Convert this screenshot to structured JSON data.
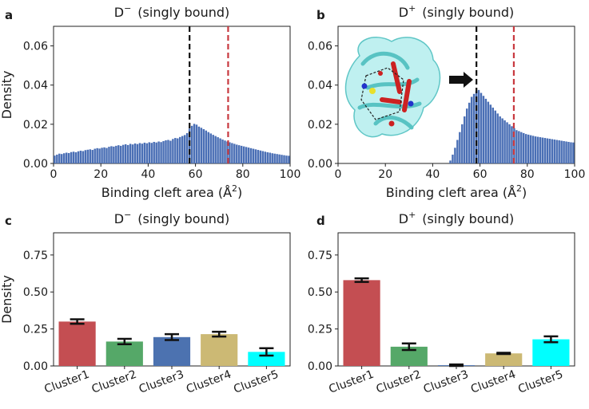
{
  "chart_data": [
    {
      "panel": "a",
      "type": "bar",
      "title_base": "D",
      "title_sup": "−",
      "title_rest": "(singly bound)",
      "xlabel": "Binding cleft area (Å",
      "xlabel_sup": "2",
      "xlabel_end": ")",
      "ylabel": "Density",
      "xlim": [
        0,
        100
      ],
      "ylim": [
        0,
        0.07
      ],
      "xticks": [
        0,
        20,
        40,
        60,
        80,
        100
      ],
      "yticks": [
        "0.00",
        "0.02",
        "0.04",
        "0.06"
      ],
      "bin_start": 0,
      "bin_width": 1,
      "values": [
        0.004,
        0.0045,
        0.005,
        0.0048,
        0.0052,
        0.0055,
        0.0053,
        0.0058,
        0.006,
        0.0057,
        0.0062,
        0.0065,
        0.0063,
        0.0068,
        0.007,
        0.0072,
        0.0069,
        0.0075,
        0.0078,
        0.0076,
        0.008,
        0.0082,
        0.0079,
        0.0085,
        0.0088,
        0.0086,
        0.009,
        0.0093,
        0.009,
        0.0095,
        0.0098,
        0.0094,
        0.01,
        0.0097,
        0.0102,
        0.0099,
        0.0104,
        0.0101,
        0.0106,
        0.0103,
        0.0108,
        0.0105,
        0.011,
        0.0107,
        0.0112,
        0.0109,
        0.0114,
        0.0118,
        0.012,
        0.0116,
        0.0125,
        0.013,
        0.0128,
        0.0135,
        0.014,
        0.0145,
        0.0155,
        0.0178,
        0.0192,
        0.0202,
        0.0198,
        0.0188,
        0.0182,
        0.0175,
        0.0168,
        0.016,
        0.0153,
        0.0146,
        0.014,
        0.0134,
        0.0128,
        0.0122,
        0.0117,
        0.0112,
        0.0108,
        0.0104,
        0.01,
        0.0096,
        0.0093,
        0.009,
        0.0087,
        0.0084,
        0.0081,
        0.0078,
        0.0075,
        0.0072,
        0.0069,
        0.0066,
        0.0063,
        0.006,
        0.0057,
        0.0055,
        0.0052,
        0.005,
        0.0048,
        0.0046,
        0.0044,
        0.0042,
        0.004,
        0.0039
      ],
      "vlines": [
        {
          "x": 57.5,
          "color": "#111111"
        },
        {
          "x": 73.8,
          "color": "#c8393f"
        }
      ],
      "colors": {
        "bar": "#4a6fb5"
      }
    },
    {
      "panel": "b",
      "type": "bar",
      "title_base": "D",
      "title_sup": "+",
      "title_rest": "(singly bound)",
      "xlabel": "Binding cleft area (Å",
      "xlabel_sup": "2",
      "xlabel_end": ")",
      "ylabel": "",
      "xlim": [
        0,
        100
      ],
      "ylim": [
        0,
        0.07
      ],
      "xticks": [
        0,
        20,
        40,
        60,
        80,
        100
      ],
      "yticks": [
        "0.00",
        "0.02",
        "0.04",
        "0.06"
      ],
      "bin_start": 47,
      "bin_width": 1,
      "values": [
        0.0015,
        0.0045,
        0.008,
        0.012,
        0.016,
        0.02,
        0.024,
        0.028,
        0.031,
        0.034,
        0.0355,
        0.037,
        0.0375,
        0.036,
        0.0345,
        0.033,
        0.0315,
        0.03,
        0.0285,
        0.027,
        0.0255,
        0.024,
        0.023,
        0.022,
        0.021,
        0.02,
        0.019,
        0.018,
        0.017,
        0.0165,
        0.016,
        0.0155,
        0.015,
        0.0147,
        0.0144,
        0.0141,
        0.0138,
        0.0136,
        0.0134,
        0.0132,
        0.013,
        0.0128,
        0.0126,
        0.0124,
        0.0122,
        0.012,
        0.0118,
        0.0116,
        0.0114,
        0.0112,
        0.011,
        0.0108,
        0.0107
      ],
      "vlines": [
        {
          "x": 58.5,
          "color": "#111111"
        },
        {
          "x": 74.3,
          "color": "#c8393f"
        }
      ],
      "colors": {
        "bar": "#4a6fb5"
      }
    },
    {
      "panel": "c",
      "type": "bar",
      "title_base": "D",
      "title_sup": "−",
      "title_rest": "(singly bound)",
      "ylabel": "Density",
      "ylim": [
        0,
        0.9
      ],
      "yticks": [
        "0.00",
        "0.25",
        "0.50",
        "0.75"
      ],
      "categories": [
        "Cluster1",
        "Cluster2",
        "Cluster3",
        "Cluster4",
        "Cluster5"
      ],
      "values": [
        0.3,
        0.165,
        0.195,
        0.215,
        0.095
      ],
      "errors": [
        0.015,
        0.018,
        0.02,
        0.016,
        0.025
      ],
      "colors": [
        "#c44e52",
        "#55a868",
        "#4c72b0",
        "#ccb974",
        "#00ffff"
      ]
    },
    {
      "panel": "d",
      "type": "bar",
      "title_base": "D",
      "title_sup": "+",
      "title_rest": "(singly bound)",
      "ylabel": "",
      "ylim": [
        0,
        0.9
      ],
      "yticks": [
        "0.00",
        "0.25",
        "0.50",
        "0.75"
      ],
      "categories": [
        "Cluster1",
        "Cluster2",
        "Cluster3",
        "Cluster4",
        "Cluster5"
      ],
      "values": [
        0.58,
        0.13,
        0.005,
        0.085,
        0.18
      ],
      "errors": [
        0.012,
        0.022,
        0.005,
        0.004,
        0.02
      ],
      "colors": [
        "#c44e52",
        "#55a868",
        "#4c72b0",
        "#ccb974",
        "#00ffff"
      ]
    }
  ],
  "inset": {
    "description_icon": "protein-structure-icon",
    "arrow_icon": "right-arrow-icon"
  }
}
